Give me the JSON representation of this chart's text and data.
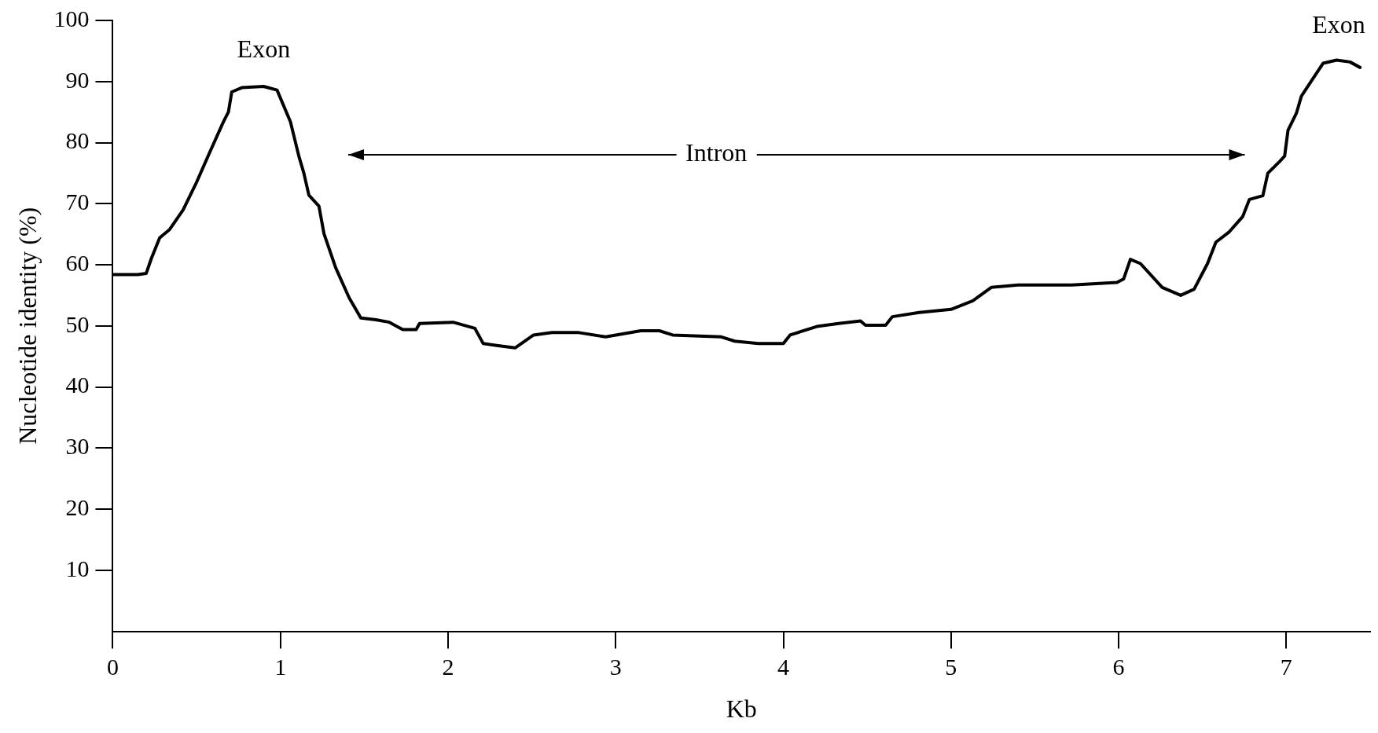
{
  "chart_data": {
    "type": "line",
    "xlabel": "Kb",
    "ylabel": "Nucleotide identity (%)",
    "xlim": [
      0,
      7.5
    ],
    "xticks": [
      0,
      1,
      2,
      3,
      4,
      5,
      6,
      7
    ],
    "ylim": [
      0,
      100
    ],
    "yticks": [
      10,
      20,
      30,
      40,
      50,
      60,
      70,
      80,
      90,
      100
    ],
    "grid": false,
    "legend": false,
    "marker": "none",
    "line_style": "solid",
    "series": [
      {
        "color": "#000000",
        "x": [
          0,
          0.15,
          0.2,
          0.23,
          0.28,
          0.34,
          0.42,
          0.5,
          0.58,
          0.66,
          0.69,
          0.71,
          0.77,
          0.9,
          0.98,
          1.06,
          1.11,
          1.14,
          1.17,
          1.23,
          1.26,
          1.33,
          1.41,
          1.48,
          1.57,
          1.65,
          1.73,
          1.81,
          1.83,
          2.03,
          2.16,
          2.21,
          2.29,
          2.4,
          2.51,
          2.62,
          2.78,
          2.94,
          3.15,
          3.26,
          3.34,
          3.63,
          3.71,
          3.85,
          4.0,
          4.04,
          4.2,
          4.33,
          4.46,
          4.49,
          4.61,
          4.65,
          4.81,
          5.0,
          5.13,
          5.24,
          5.4,
          5.72,
          5.99,
          6.03,
          6.07,
          6.13,
          6.26,
          6.37,
          6.45,
          6.53,
          6.58,
          6.66,
          6.74,
          6.78,
          6.86,
          6.89,
          6.96,
          6.99,
          7.01,
          7.06,
          7.09,
          7.14,
          7.22,
          7.3,
          7.38,
          7.44
        ],
        "values": [
          58.4,
          58.4,
          58.6,
          61,
          64.4,
          65.8,
          69,
          73.5,
          78.5,
          83.4,
          85,
          88.3,
          89,
          89.2,
          88.6,
          83.4,
          77.8,
          75,
          71.4,
          69.6,
          65.1,
          59.5,
          54.6,
          51.3,
          51,
          50.6,
          49.4,
          49.4,
          50.4,
          50.6,
          49.6,
          47.1,
          46.8,
          46.4,
          48.5,
          48.9,
          48.9,
          48.2,
          49.2,
          49.2,
          48.5,
          48.2,
          47.5,
          47.1,
          47.1,
          48.5,
          49.9,
          50.4,
          50.8,
          50.1,
          50.1,
          51.5,
          52.2,
          52.7,
          54.1,
          56.3,
          56.7,
          56.7,
          57.1,
          57.7,
          60.9,
          60.2,
          56.3,
          55,
          56,
          60.2,
          63.7,
          65.4,
          67.9,
          70.7,
          71.3,
          75,
          76.9,
          77.8,
          82,
          84.8,
          87.6,
          89.7,
          93,
          93.5,
          93.2,
          92.3
        ]
      }
    ],
    "annotations": [
      "Exon",
      "Exon",
      "Intron"
    ]
  }
}
